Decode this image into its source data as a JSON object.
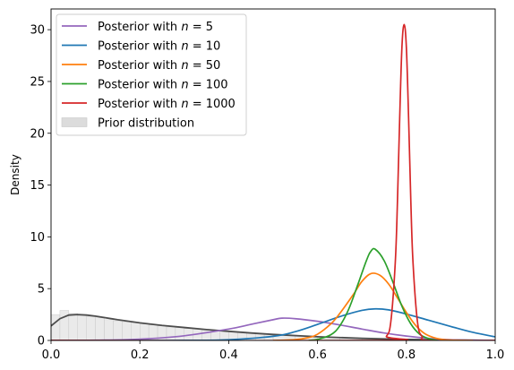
{
  "chart_data": {
    "type": "line",
    "title": "",
    "xlabel": "",
    "ylabel": "Density",
    "xlim": [
      0.0,
      1.0
    ],
    "ylim": [
      0,
      32
    ],
    "x_ticks": [
      "0.0",
      "0.2",
      "0.4",
      "0.6",
      "0.8",
      "1.0"
    ],
    "y_ticks": [
      "0",
      "5",
      "10",
      "15",
      "20",
      "25",
      "30"
    ],
    "grid": false,
    "legend_position": "top-left",
    "series": [
      {
        "name_prefix": "Posterior with ",
        "name_math": "n = 5",
        "color": "#9467bd",
        "x": [
          0.0,
          0.1,
          0.2,
          0.3,
          0.4,
          0.45,
          0.5,
          0.52,
          0.55,
          0.6,
          0.65,
          0.7,
          0.75,
          0.8,
          0.85,
          0.9,
          0.95,
          1.0
        ],
        "y": [
          0.0,
          0.02,
          0.12,
          0.45,
          1.1,
          1.55,
          2.0,
          2.15,
          2.1,
          1.85,
          1.5,
          1.1,
          0.72,
          0.42,
          0.2,
          0.07,
          0.02,
          0.0
        ]
      },
      {
        "name_prefix": "Posterior with ",
        "name_math": "n = 10",
        "color": "#1f77b4",
        "x": [
          0.0,
          0.2,
          0.3,
          0.4,
          0.5,
          0.55,
          0.6,
          0.65,
          0.7,
          0.73,
          0.76,
          0.8,
          0.85,
          0.9,
          0.95,
          1.0
        ],
        "y": [
          0.0,
          0.0,
          0.01,
          0.07,
          0.4,
          0.85,
          1.55,
          2.3,
          2.9,
          3.05,
          2.95,
          2.55,
          1.95,
          1.35,
          0.78,
          0.35
        ]
      },
      {
        "name_prefix": "Posterior with ",
        "name_math": "n = 50",
        "color": "#ff7f0e",
        "x": [
          0.5,
          0.55,
          0.58,
          0.6,
          0.63,
          0.65,
          0.68,
          0.7,
          0.72,
          0.74,
          0.76,
          0.78,
          0.8,
          0.82,
          0.84,
          0.86,
          0.88,
          0.9,
          0.95
        ],
        "y": [
          0.0,
          0.08,
          0.28,
          0.6,
          1.6,
          2.6,
          4.4,
          5.7,
          6.45,
          6.3,
          5.45,
          4.1,
          2.7,
          1.5,
          0.7,
          0.3,
          0.1,
          0.03,
          0.0
        ]
      },
      {
        "name_prefix": "Posterior with ",
        "name_math": "n = 100",
        "color": "#2ca02c",
        "x": [
          0.58,
          0.6,
          0.63,
          0.65,
          0.67,
          0.69,
          0.71,
          0.72,
          0.73,
          0.75,
          0.77,
          0.79,
          0.81,
          0.83,
          0.85,
          0.87
        ],
        "y": [
          0.0,
          0.1,
          0.55,
          1.4,
          3.0,
          5.3,
          7.7,
          8.6,
          8.8,
          7.7,
          5.6,
          3.3,
          1.6,
          0.6,
          0.18,
          0.0
        ]
      },
      {
        "name_prefix": "Posterior with ",
        "name_math": "n = 1000",
        "color": "#d62728",
        "x": [
          0.0,
          0.74,
          0.755,
          0.765,
          0.775,
          0.78,
          0.785,
          0.79,
          0.795,
          0.8,
          0.805,
          0.81,
          0.815,
          0.825,
          0.835,
          0.85,
          1.0
        ],
        "y": [
          0.0,
          0.0,
          0.4,
          1.8,
          7.5,
          13.5,
          21.5,
          28.3,
          30.5,
          28.3,
          21.5,
          13.5,
          7.5,
          1.8,
          0.4,
          0.0,
          0.0
        ]
      }
    ],
    "prior": {
      "name": "Prior distribution",
      "fill_color": "#dcdcdc",
      "line_color": "#4d4d4d",
      "x": [
        0.0,
        0.02,
        0.04,
        0.06,
        0.08,
        0.1,
        0.15,
        0.2,
        0.25,
        0.3,
        0.35,
        0.4,
        0.45,
        0.5,
        0.6,
        0.7,
        0.8,
        0.9,
        1.0
      ],
      "y": [
        1.4,
        2.1,
        2.45,
        2.5,
        2.45,
        2.35,
        2.0,
        1.7,
        1.45,
        1.25,
        1.05,
        0.88,
        0.72,
        0.58,
        0.36,
        0.2,
        0.1,
        0.04,
        0.0
      ],
      "hist_bins": [
        {
          "x0": 0.0,
          "x1": 0.02,
          "h": 2.5
        },
        {
          "x0": 0.02,
          "x1": 0.04,
          "h": 2.9
        },
        {
          "x0": 0.04,
          "x1": 0.06,
          "h": 2.6
        },
        {
          "x0": 0.06,
          "x1": 0.08,
          "h": 2.4
        },
        {
          "x0": 0.08,
          "x1": 0.1,
          "h": 2.3
        },
        {
          "x0": 0.1,
          "x1": 0.12,
          "h": 2.2
        },
        {
          "x0": 0.12,
          "x1": 0.14,
          "h": 2.0
        },
        {
          "x0": 0.14,
          "x1": 0.16,
          "h": 1.9
        },
        {
          "x0": 0.16,
          "x1": 0.18,
          "h": 1.8
        },
        {
          "x0": 0.18,
          "x1": 0.2,
          "h": 1.7
        },
        {
          "x0": 0.2,
          "x1": 0.22,
          "h": 1.6
        },
        {
          "x0": 0.22,
          "x1": 0.24,
          "h": 1.5
        },
        {
          "x0": 0.24,
          "x1": 0.26,
          "h": 1.4
        },
        {
          "x0": 0.26,
          "x1": 0.28,
          "h": 1.3
        },
        {
          "x0": 0.28,
          "x1": 0.3,
          "h": 1.25
        },
        {
          "x0": 0.3,
          "x1": 0.32,
          "h": 1.15
        },
        {
          "x0": 0.32,
          "x1": 0.34,
          "h": 1.1
        },
        {
          "x0": 0.34,
          "x1": 0.36,
          "h": 1.0
        },
        {
          "x0": 0.36,
          "x1": 0.38,
          "h": 0.95
        },
        {
          "x0": 0.38,
          "x1": 0.4,
          "h": 0.9
        },
        {
          "x0": 0.4,
          "x1": 0.42,
          "h": 0.82
        },
        {
          "x0": 0.42,
          "x1": 0.44,
          "h": 0.75
        },
        {
          "x0": 0.44,
          "x1": 0.46,
          "h": 0.7
        },
        {
          "x0": 0.46,
          "x1": 0.48,
          "h": 0.62
        },
        {
          "x0": 0.48,
          "x1": 0.5,
          "h": 0.58
        },
        {
          "x0": 0.5,
          "x1": 0.55,
          "h": 0.5
        },
        {
          "x0": 0.55,
          "x1": 0.6,
          "h": 0.4
        },
        {
          "x0": 0.6,
          "x1": 0.65,
          "h": 0.32
        },
        {
          "x0": 0.65,
          "x1": 0.7,
          "h": 0.24
        },
        {
          "x0": 0.7,
          "x1": 0.75,
          "h": 0.17
        },
        {
          "x0": 0.75,
          "x1": 0.8,
          "h": 0.12
        },
        {
          "x0": 0.8,
          "x1": 0.85,
          "h": 0.08
        },
        {
          "x0": 0.85,
          "x1": 0.9,
          "h": 0.05
        },
        {
          "x0": 0.9,
          "x1": 0.95,
          "h": 0.03
        },
        {
          "x0": 0.95,
          "x1": 1.0,
          "h": 0.01
        }
      ]
    }
  }
}
